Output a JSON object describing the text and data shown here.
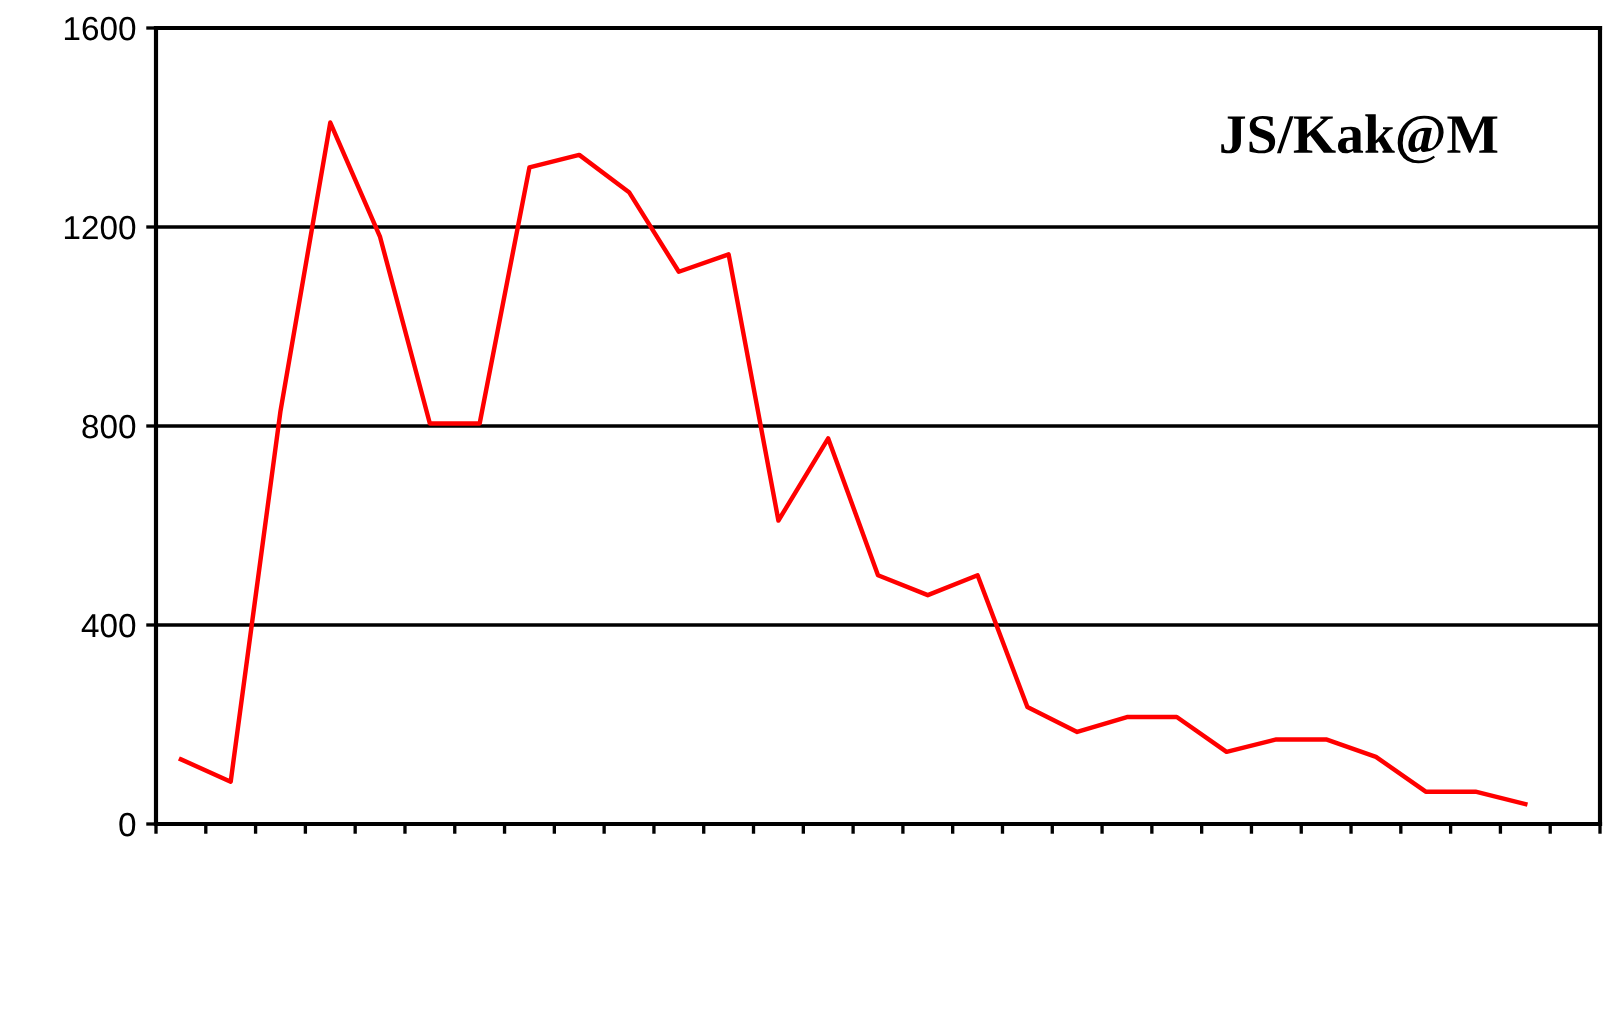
{
  "chart_data": {
    "type": "line",
    "categories": [
      null,
      null,
      null,
      null,
      null,
      null,
      null,
      null,
      null,
      null,
      null,
      null,
      null,
      null,
      null,
      null,
      null,
      null,
      null,
      null,
      null,
      null,
      null,
      null,
      null,
      null,
      null,
      null,
      null
    ],
    "series": [
      {
        "color": "#ff0000",
        "values": [
          130,
          85,
          830,
          1410,
          1180,
          805,
          805,
          1320,
          1345,
          1270,
          1110,
          1145,
          610,
          775,
          500,
          460,
          500,
          235,
          185,
          215,
          215,
          145,
          170,
          170,
          135,
          65,
          65,
          40,
          null
        ]
      }
    ],
    "ylim": [
      0,
      1600
    ],
    "yticks": [
      0,
      400,
      800,
      1200,
      1600
    ],
    "grid": "y",
    "annotations": [
      "JS/Kak@M"
    ]
  }
}
